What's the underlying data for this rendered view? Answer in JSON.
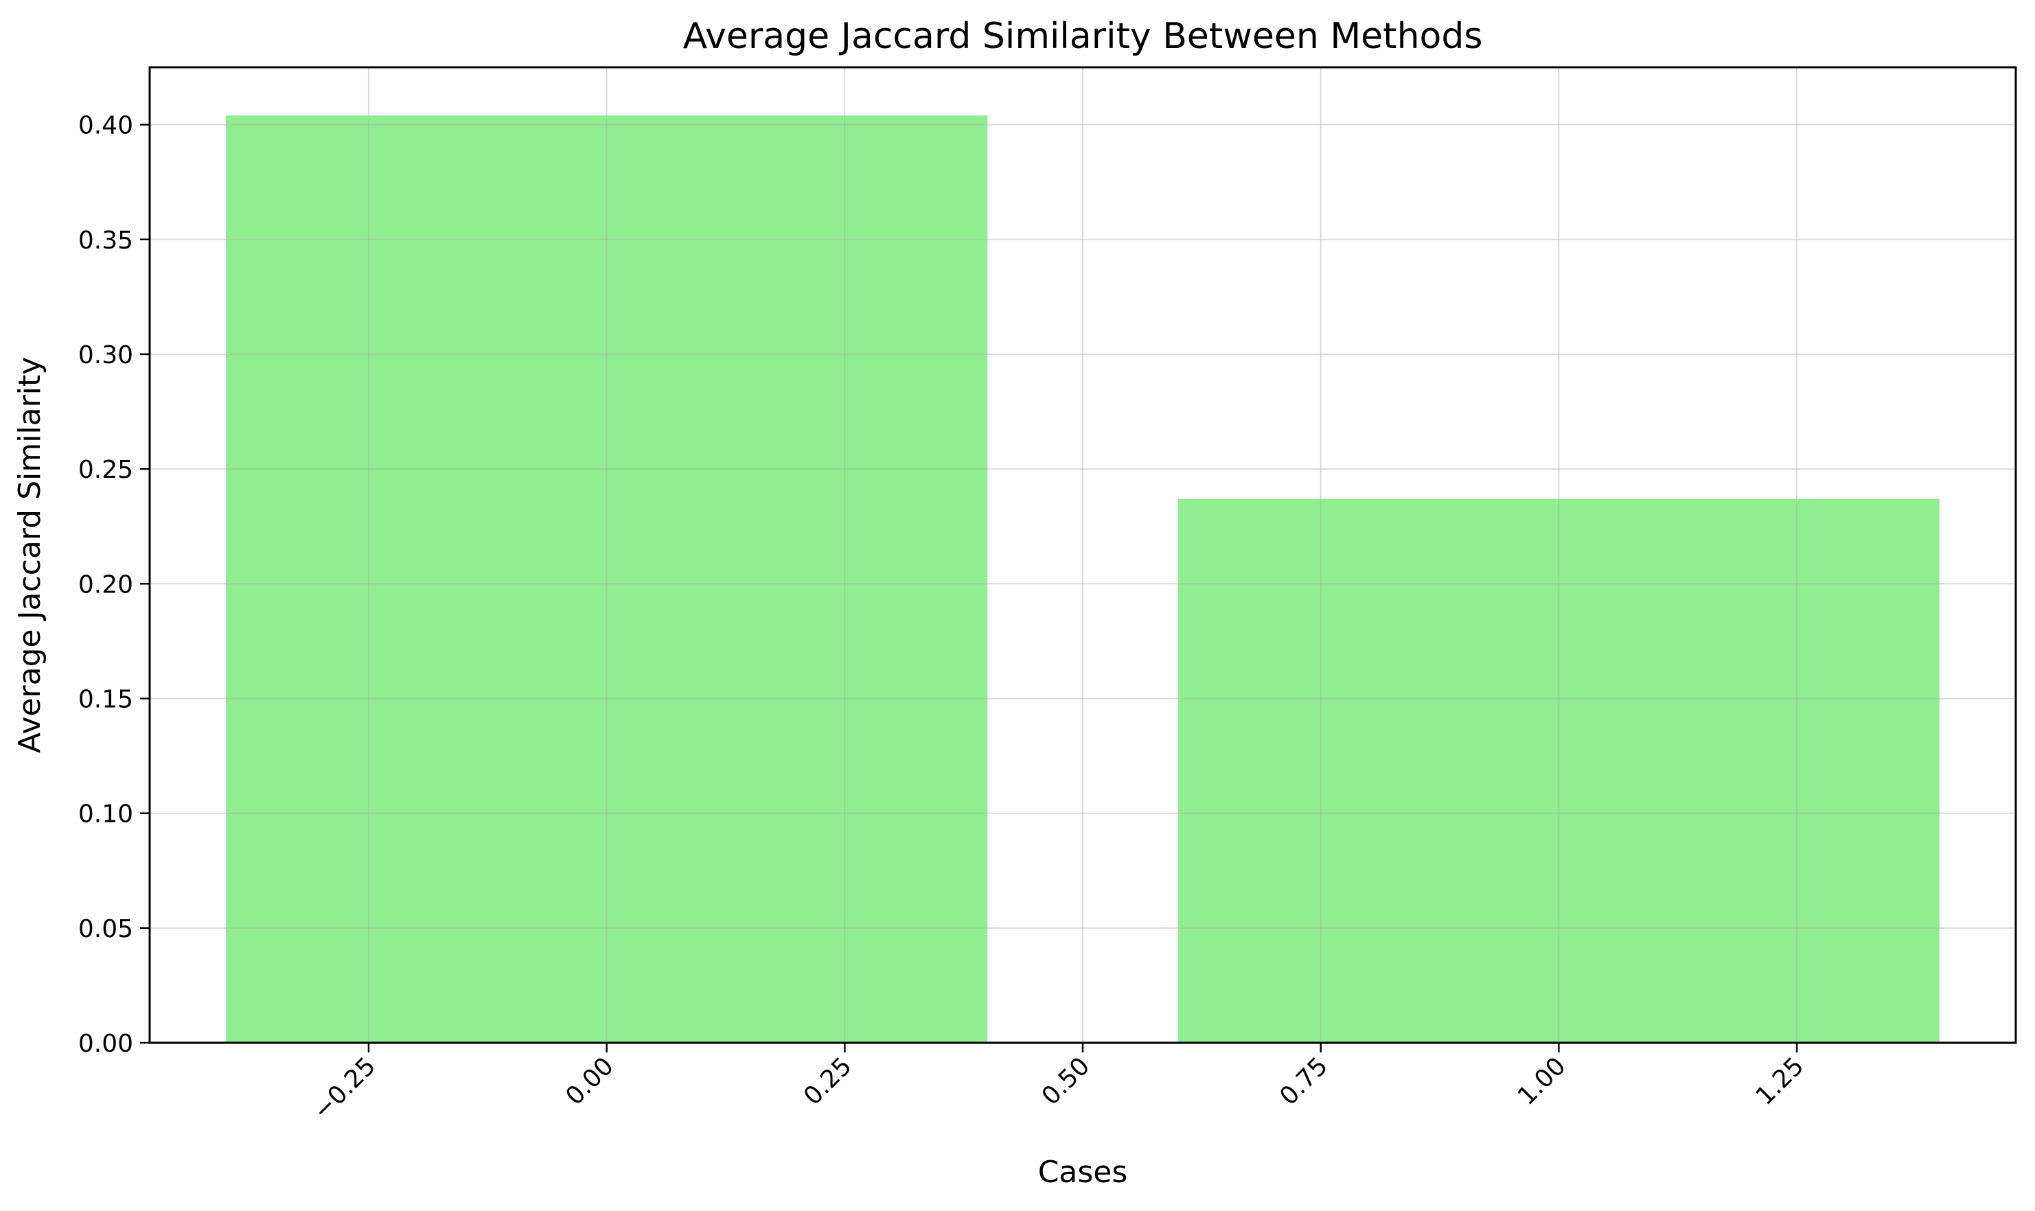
{
  "chart_data": {
    "type": "bar",
    "title": "Average Jaccard Similarity Between Methods",
    "xlabel": "Cases",
    "ylabel": "Average Jaccard Similarity",
    "bars": [
      {
        "x": 0,
        "value": 0.404,
        "width": 0.8
      },
      {
        "x": 1,
        "value": 0.237,
        "width": 0.8
      }
    ],
    "bar_color": "#90EE90",
    "xlim": [
      -0.48,
      1.48
    ],
    "ylim": [
      0,
      0.425
    ],
    "xticks": [
      -0.25,
      0.0,
      0.25,
      0.5,
      0.75,
      1.0,
      1.25
    ],
    "xtick_labels": [
      "−0.25",
      "0.00",
      "0.25",
      "0.50",
      "0.75",
      "1.00",
      "1.25"
    ],
    "yticks": [
      0.0,
      0.05,
      0.1,
      0.15,
      0.2,
      0.25,
      0.3,
      0.35,
      0.4
    ],
    "ytick_labels": [
      "0.00",
      "0.05",
      "0.10",
      "0.15",
      "0.20",
      "0.25",
      "0.30",
      "0.35",
      "0.40"
    ],
    "grid": true,
    "legend": "none"
  }
}
